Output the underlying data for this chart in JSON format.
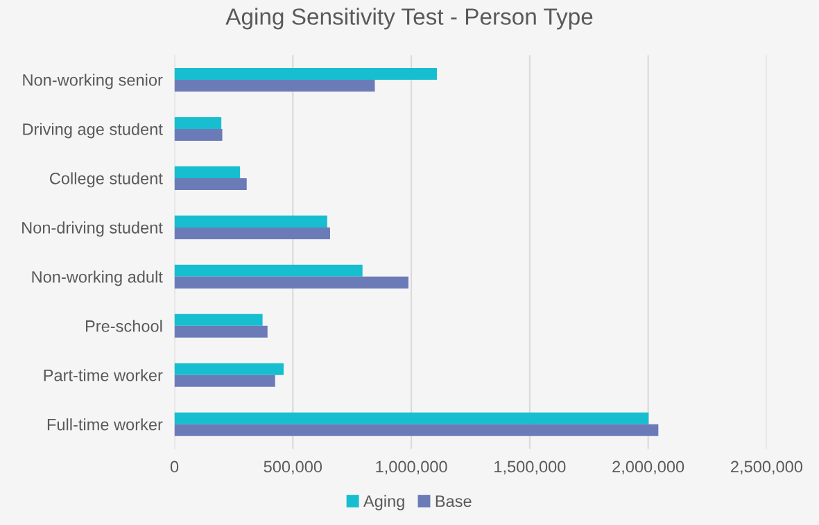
{
  "chart_data": {
    "type": "bar",
    "orientation": "horizontal",
    "title": "Aging Sensitivity Test - Person Type",
    "categories": [
      "Non-working senior",
      "Driving age student",
      "College student",
      "Non-driving student",
      "Non-working adult",
      "Pre-school",
      "Part-time worker",
      "Full-time worker"
    ],
    "series": [
      {
        "name": "Aging",
        "color": "#17becf",
        "values": [
          1108000,
          198000,
          277000,
          645000,
          794000,
          372000,
          461000,
          2002000
        ]
      },
      {
        "name": "Base",
        "color": "#6b7bb8",
        "values": [
          846000,
          202000,
          305000,
          657000,
          988000,
          393000,
          425000,
          2043000
        ]
      }
    ],
    "xlim": [
      0,
      2500000
    ],
    "xticks": [
      {
        "value": 0,
        "label": "0"
      },
      {
        "value": 500000,
        "label": "500,000"
      },
      {
        "value": 1000000,
        "label": "1,000,000"
      },
      {
        "value": 1500000,
        "label": "1,500,000"
      },
      {
        "value": 2000000,
        "label": "2,000,000"
      },
      {
        "value": 2500000,
        "label": "2,500,000"
      }
    ],
    "grid": "x",
    "legend": "bottom"
  }
}
